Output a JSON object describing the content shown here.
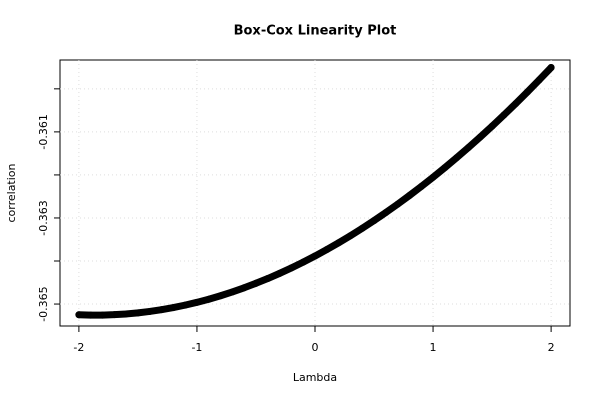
{
  "chart_data": {
    "type": "scatter",
    "title": "Box-Cox Linearity Plot",
    "x_label": "Lambda",
    "y_label": "correlation",
    "grid": true,
    "color": "#000000",
    "xlim": [
      -2.16,
      2.16
    ],
    "xticks": [
      -2,
      -1,
      0,
      1,
      2
    ],
    "ylim": [
      -0.36551,
      -0.35933
    ],
    "yticks": [
      {
        "value": -0.36,
        "label": null
      },
      -0.361,
      {
        "value": -0.362,
        "label": null
      },
      -0.363,
      {
        "value": -0.364,
        "label": null
      },
      -0.365
    ],
    "x": [
      -2.0,
      -1.9,
      -1.8,
      -1.7,
      -1.6,
      -1.5,
      -1.4,
      -1.3,
      -1.2,
      -1.1,
      -1.0,
      -0.9,
      -0.8,
      -0.7,
      -0.6,
      -0.5,
      -0.4,
      -0.3,
      -0.2,
      -0.1,
      0.0,
      0.1,
      0.2,
      0.3,
      0.4,
      0.5,
      0.6,
      0.7,
      0.8,
      0.9,
      1.0,
      1.1,
      1.2,
      1.3,
      1.4,
      1.5,
      1.6,
      1.7,
      1.8,
      1.9,
      2.0
    ],
    "values": [
      -0.365249,
      -0.365256,
      -0.365256,
      -0.365247,
      -0.36523,
      -0.365205,
      -0.365172,
      -0.365131,
      -0.365082,
      -0.365025,
      -0.36496,
      -0.364888,
      -0.364807,
      -0.364719,
      -0.364622,
      -0.364518,
      -0.364407,
      -0.364287,
      -0.36416,
      -0.364026,
      -0.363884,
      -0.363734,
      -0.363577,
      -0.363412,
      -0.36324,
      -0.363061,
      -0.362874,
      -0.36268,
      -0.362478,
      -0.362269,
      -0.362053,
      -0.36183,
      -0.3616,
      -0.361363,
      -0.361118,
      -0.360867,
      -0.360608,
      -0.360343,
      -0.36007,
      -0.359791,
      -0.359505
    ]
  }
}
